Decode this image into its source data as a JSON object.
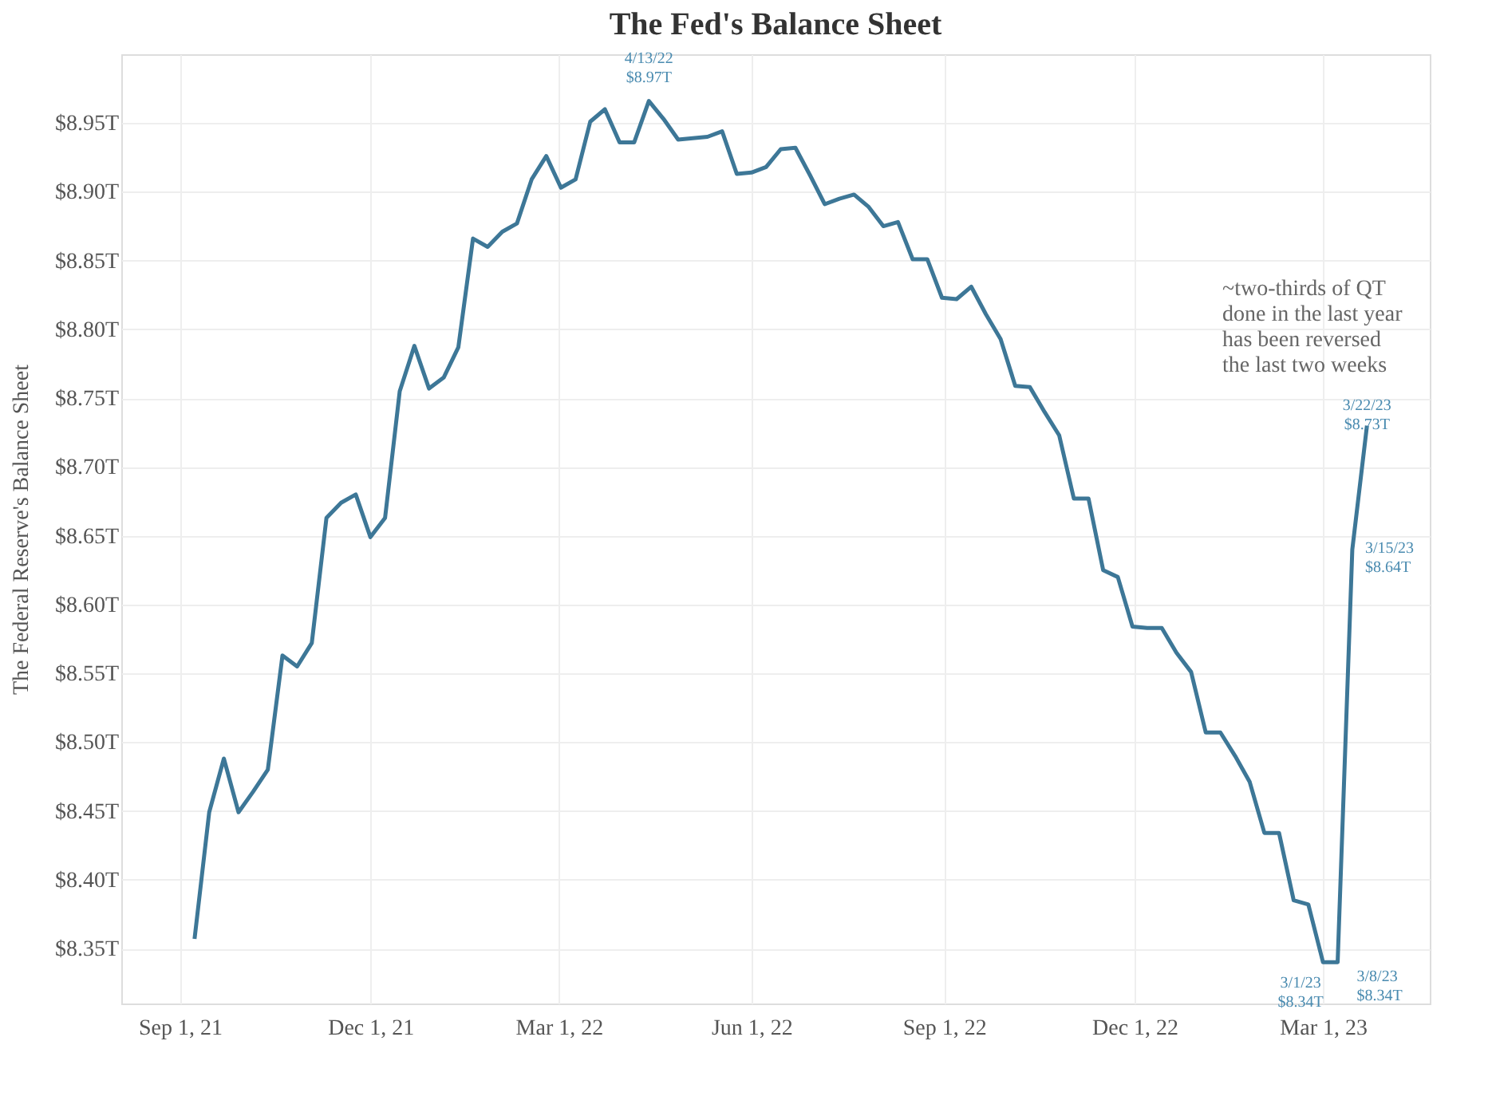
{
  "chart_data": {
    "type": "line",
    "title": "The Fed's Balance Sheet",
    "ylabel": "The Federal Reserve's Balance Sheet",
    "x": [
      "2021-09-08",
      "2021-09-15",
      "2021-09-22",
      "2021-09-29",
      "2021-10-06",
      "2021-10-13",
      "2021-10-20",
      "2021-10-27",
      "2021-11-03",
      "2021-11-10",
      "2021-11-17",
      "2021-11-24",
      "2021-12-01",
      "2021-12-08",
      "2021-12-15",
      "2021-12-22",
      "2021-12-29",
      "2022-01-05",
      "2022-01-12",
      "2022-01-19",
      "2022-01-26",
      "2022-02-02",
      "2022-02-09",
      "2022-02-16",
      "2022-02-23",
      "2022-03-02",
      "2022-03-09",
      "2022-03-16",
      "2022-03-23",
      "2022-03-30",
      "2022-04-06",
      "2022-04-13",
      "2022-04-20",
      "2022-04-27",
      "2022-05-04",
      "2022-05-11",
      "2022-05-18",
      "2022-05-25",
      "2022-06-01",
      "2022-06-08",
      "2022-06-15",
      "2022-06-22",
      "2022-06-29",
      "2022-07-06",
      "2022-07-13",
      "2022-07-20",
      "2022-07-27",
      "2022-08-03",
      "2022-08-10",
      "2022-08-17",
      "2022-08-24",
      "2022-08-31",
      "2022-09-07",
      "2022-09-14",
      "2022-09-21",
      "2022-09-28",
      "2022-10-05",
      "2022-10-12",
      "2022-10-19",
      "2022-10-26",
      "2022-11-02",
      "2022-11-09",
      "2022-11-16",
      "2022-11-23",
      "2022-11-30",
      "2022-12-07",
      "2022-12-14",
      "2022-12-21",
      "2022-12-28",
      "2023-01-04",
      "2023-01-11",
      "2023-01-18",
      "2023-01-25",
      "2023-02-01",
      "2023-02-08",
      "2023-02-15",
      "2023-02-22",
      "2023-03-01",
      "2023-03-08",
      "2023-03-15",
      "2023-03-22"
    ],
    "series": [
      {
        "color": "#3d7797",
        "values": [
          8.357,
          8.449,
          8.488,
          8.449,
          8.464,
          8.48,
          8.563,
          8.555,
          8.572,
          8.663,
          8.674,
          8.68,
          8.649,
          8.663,
          8.755,
          8.788,
          8.757,
          8.765,
          8.787,
          8.866,
          8.86,
          8.871,
          8.877,
          8.909,
          8.926,
          8.903,
          8.909,
          8.951,
          8.96,
          8.936,
          8.936,
          8.966,
          8.953,
          8.938,
          8.939,
          8.94,
          8.944,
          8.913,
          8.914,
          8.918,
          8.931,
          8.932,
          8.912,
          8.891,
          8.895,
          8.898,
          8.889,
          8.875,
          8.878,
          8.851,
          8.851,
          8.823,
          8.822,
          8.831,
          8.811,
          8.793,
          8.759,
          8.758,
          8.74,
          8.723,
          8.677,
          8.677,
          8.625,
          8.62,
          8.584,
          8.583,
          8.583,
          8.565,
          8.551,
          8.507,
          8.507,
          8.49,
          8.471,
          8.434,
          8.434,
          8.385,
          8.382,
          8.34,
          8.34,
          8.64,
          8.73
        ]
      }
    ],
    "xlim": [
      "2021-08-04",
      "2023-04-21"
    ],
    "xticks": [
      {
        "value": "2021-09-01",
        "label": "Sep 1, 21"
      },
      {
        "value": "2021-12-01",
        "label": "Dec 1, 21"
      },
      {
        "value": "2022-03-01",
        "label": "Mar 1, 22"
      },
      {
        "value": "2022-06-01",
        "label": "Jun 1, 22"
      },
      {
        "value": "2022-09-01",
        "label": "Sep 1, 22"
      },
      {
        "value": "2022-12-01",
        "label": "Dec 1, 22"
      },
      {
        "value": "2023-03-01",
        "label": "Mar 1, 23"
      }
    ],
    "ylim": [
      8.31,
      9.0
    ],
    "yticks": [
      {
        "value": 8.35,
        "label": "$8.35T"
      },
      {
        "value": 8.4,
        "label": "$8.40T"
      },
      {
        "value": 8.45,
        "label": "$8.45T"
      },
      {
        "value": 8.5,
        "label": "$8.50T"
      },
      {
        "value": 8.55,
        "label": "$8.55T"
      },
      {
        "value": 8.6,
        "label": "$8.60T"
      },
      {
        "value": 8.65,
        "label": "$8.65T"
      },
      {
        "value": 8.7,
        "label": "$8.70T"
      },
      {
        "value": 8.75,
        "label": "$8.75T"
      },
      {
        "value": 8.8,
        "label": "$8.80T"
      },
      {
        "value": 8.85,
        "label": "$8.85T"
      },
      {
        "value": 8.9,
        "label": "$8.90T"
      },
      {
        "value": 8.95,
        "label": "$8.95T"
      }
    ],
    "grid": true,
    "line_style": "solid",
    "annotations": [
      {
        "text": "4/13/22\n$8.97T",
        "x": "2022-04-13",
        "y": 8.966
      },
      {
        "text": "3/1/23\n$8.34T",
        "x": "2023-03-01",
        "y": 8.34
      },
      {
        "text": "3/8/23\n$8.34T",
        "x": "2023-03-08",
        "y": 8.34
      },
      {
        "text": "3/15/23\n$8.64T",
        "x": "2023-03-15",
        "y": 8.64
      },
      {
        "text": "3/22/23\n$8.73T",
        "x": "2023-03-22",
        "y": 8.73
      },
      "~two-thirds of QT\ndone in the last year\nhas been reversed\nthe last two weeks"
    ]
  }
}
